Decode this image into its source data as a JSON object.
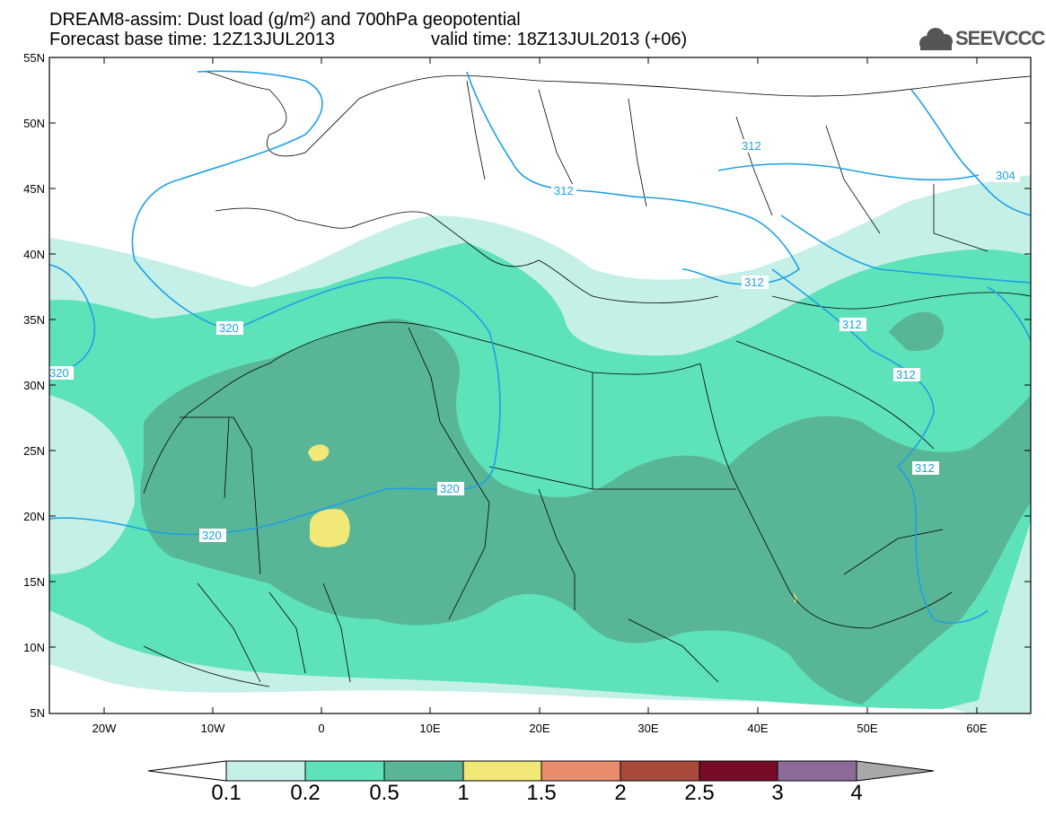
{
  "header": {
    "title_line1": "DREAM8-assim: Dust load (g/m²) and 700hPa geopotential",
    "title_line2": "Forecast base time: 12Z13JUL2013",
    "title_line2b": "valid time: 18Z13JUL2013 (+06)",
    "logo_text": "SEEVCCC"
  },
  "map": {
    "lat_labels": [
      "55N",
      "50N",
      "45N",
      "40N",
      "35N",
      "30N",
      "25N",
      "20N",
      "15N",
      "10N",
      "5N"
    ],
    "lon_labels": [
      "20W",
      "10W",
      "0",
      "10E",
      "20E",
      "30E",
      "40E",
      "50E",
      "60E"
    ],
    "contour_labels": [
      "312",
      "312",
      "304",
      "320",
      "320",
      "312",
      "312",
      "312",
      "320",
      "320",
      "312"
    ],
    "colors": {
      "level_01": "#c4f0e8",
      "level_02": "#5ee2ba",
      "level_05": "#58b696",
      "level_1": "#f2e878",
      "contour": "#1ea0e6",
      "border": "#000000"
    }
  },
  "colorbar": {
    "labels": [
      "0.1",
      "0.2",
      "0.5",
      "1",
      "1.5",
      "2",
      "2.5",
      "3",
      "4"
    ],
    "colors": [
      "#c4f0e8",
      "#5ee2ba",
      "#58b696",
      "#f2e878",
      "#e88c6c",
      "#a84a3c",
      "#780c28",
      "#8c6a9a"
    ]
  }
}
